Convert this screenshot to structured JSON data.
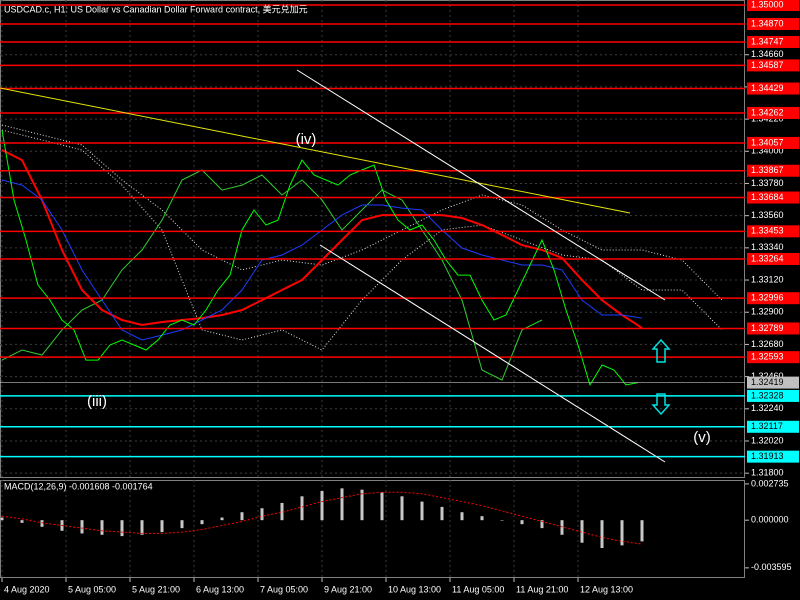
{
  "chart_data": [
    {
      "type": "line",
      "title": "USDCAD.c, H1:  US Dollar vs Canadian Dollar Forward contract, 美元兑加元",
      "annotations": [
        "(iii)",
        "(iv)",
        "(v)"
      ],
      "background": "#000000",
      "grid": true,
      "xlim": [
        -0.5,
        185.75
      ],
      "ylim": [
        1.31767,
        1.35034
      ],
      "xticks": [
        {
          "value": 0,
          "label": "4 Aug 2020"
        },
        {
          "value": 16,
          "label": "5 Aug 05:00"
        },
        {
          "value": 32,
          "label": "5 Aug 21:00"
        },
        {
          "value": 48,
          "label": "6 Aug 13:00"
        },
        {
          "value": 64,
          "label": "7 Aug 05:00"
        },
        {
          "value": 80,
          "label": "9 Aug 21:00"
        },
        {
          "value": 96,
          "label": "10 Aug 13:00"
        },
        {
          "value": 112,
          "label": "11 Aug 05:00"
        },
        {
          "value": 128,
          "label": "11 Aug 21:00"
        },
        {
          "value": 144,
          "label": "12 Aug 13:00"
        }
      ],
      "yticks": [
        {
          "value": 1.3466,
          "label": "1.34660"
        },
        {
          "value": 1.3444,
          "label": "1.34440"
        },
        {
          "value": 1.3422,
          "label": "1.34220"
        },
        {
          "value": 1.34,
          "label": "1.34000"
        },
        {
          "value": 1.3378,
          "label": "1.33780"
        },
        {
          "value": 1.3356,
          "label": "1.33560"
        },
        {
          "value": 1.3334,
          "label": "1.33340"
        },
        {
          "value": 1.3312,
          "label": "1.33120"
        },
        {
          "value": 1.329,
          "label": "1.32900"
        },
        {
          "value": 1.3268,
          "label": "1.32680"
        },
        {
          "value": 1.3246,
          "label": "1.32460"
        },
        {
          "value": 1.3224,
          "label": "1.32240"
        },
        {
          "value": 1.3202,
          "label": "1.32020"
        },
        {
          "value": 1.318,
          "label": "1.31800"
        }
      ],
      "hlines": [
        {
          "color": "#ff0000",
          "text_color": "#ffffff",
          "levels": [
            {
              "value": 1.35,
              "label": "1.35000"
            },
            {
              "value": 1.3487,
              "label": "1.34870"
            },
            {
              "value": 1.34747,
              "label": "1.34747"
            },
            {
              "value": 1.34587,
              "label": "1.34587"
            },
            {
              "value": 1.34429,
              "label": "1.34429"
            },
            {
              "value": 1.34262,
              "label": "1.34262"
            },
            {
              "value": 1.34057,
              "label": "1.34057"
            },
            {
              "value": 1.33867,
              "label": "1.33867"
            },
            {
              "value": 1.33684,
              "label": "1.33684"
            },
            {
              "value": 1.33453,
              "label": "1.33453"
            },
            {
              "value": 1.33264,
              "label": "1.33264"
            },
            {
              "value": 1.32996,
              "label": "1.32996"
            },
            {
              "value": 1.32789,
              "label": "1.32789"
            },
            {
              "value": 1.32593,
              "label": "1.32593"
            }
          ]
        },
        {
          "color": "#00ffff",
          "text_color": "#000000",
          "levels": [
            {
              "value": 1.32328,
              "label": "1.32328"
            },
            {
              "value": 1.32117,
              "label": "1.32117"
            },
            {
              "value": 1.31913,
              "label": "1.31913"
            }
          ]
        }
      ],
      "current_price": {
        "value": 1.32419,
        "label": "1.32419",
        "color": "#c0c0c0"
      },
      "series": [
        {
          "color": "#e0e0e0",
          "style": "dotted",
          "x": [
            0,
            10,
            20,
            30,
            40,
            50,
            60,
            70,
            80,
            90,
            100,
            110,
            120,
            130,
            140,
            150,
            160,
            170,
            180
          ],
          "values": [
            1.3418,
            1.34111,
            1.34043,
            1.33804,
            1.33599,
            1.33325,
            1.33189,
            1.33257,
            1.33223,
            1.33325,
            1.33462,
            1.33599,
            1.33701,
            1.33633,
            1.33462,
            1.33325,
            1.33325,
            1.33257,
            1.32983
          ]
        },
        {
          "color": "#e0e0e0",
          "style": "dotted",
          "x": [
            0,
            10,
            20,
            30,
            40,
            50,
            60,
            70,
            80,
            90,
            100,
            110,
            120,
            130,
            140,
            150,
            160,
            170,
            180
          ],
          "values": [
            1.34145,
            1.34077,
            1.34009,
            1.33769,
            1.33462,
            1.32779,
            1.3271,
            1.32779,
            1.32642,
            1.32983,
            1.33257,
            1.33462,
            1.33496,
            1.33394,
            1.33291,
            1.33257,
            1.33052,
            1.33052,
            1.32779
          ]
        },
        {
          "color": "#32cd32",
          "style": "solid",
          "x": [
            0,
            5,
            10,
            15,
            20,
            25,
            30,
            35,
            40,
            45,
            50,
            55,
            60,
            65,
            70,
            75,
            80,
            85,
            90,
            95,
            100,
            105,
            110,
            115,
            120,
            125,
            130,
            135
          ],
          "values": [
            1.32573,
            1.32642,
            1.32608,
            1.32779,
            1.32915,
            1.32983,
            1.33189,
            1.33325,
            1.3353,
            1.33804,
            1.33872,
            1.33735,
            1.33769,
            1.33838,
            1.33701,
            1.33804,
            1.33667,
            1.33462,
            1.33599,
            1.33735,
            1.33667,
            1.33462,
            1.33257,
            1.32983,
            1.32505,
            1.32437,
            1.32779,
            1.32847
          ]
        },
        {
          "color": "#ff0000",
          "style": "thick",
          "x": [
            0,
            5,
            10,
            15,
            20,
            25,
            30,
            35,
            40,
            45,
            50,
            55,
            60,
            65,
            70,
            75,
            80,
            85,
            90,
            95,
            100,
            105,
            110,
            115,
            120,
            125,
            130,
            135,
            140,
            145,
            150,
            155,
            160
          ],
          "values": [
            1.34009,
            1.3394,
            1.33667,
            1.33325,
            1.33052,
            1.32915,
            1.32847,
            1.32813,
            1.32833,
            1.32847,
            1.3286,
            1.32881,
            1.32915,
            1.32983,
            1.33052,
            1.3312,
            1.33257,
            1.33394,
            1.3353,
            1.33564,
            1.33564,
            1.33564,
            1.33564,
            1.33544,
            1.33496,
            1.33428,
            1.33359,
            1.33325,
            1.33271,
            1.3312,
            1.32983,
            1.32881,
            1.32792
          ]
        },
        {
          "color": "#1e3cff",
          "style": "solid",
          "x": [
            0,
            5,
            10,
            15,
            20,
            25,
            30,
            35,
            40,
            45,
            50,
            55,
            60,
            65,
            70,
            75,
            80,
            85,
            90,
            95,
            100,
            105,
            110,
            115,
            120,
            125,
            130,
            135,
            140,
            145,
            150,
            155,
            160
          ],
          "values": [
            1.33804,
            1.33769,
            1.33667,
            1.33462,
            1.33189,
            1.32983,
            1.32779,
            1.3271,
            1.32744,
            1.32779,
            1.32847,
            1.32915,
            1.33052,
            1.33257,
            1.33291,
            1.33359,
            1.33462,
            1.33564,
            1.33633,
            1.33633,
            1.33612,
            1.33599,
            1.33462,
            1.33339,
            1.33291,
            1.33257,
            1.33223,
            1.33223,
            1.33189,
            1.32983,
            1.32881,
            1.32881,
            1.3286
          ]
        },
        {
          "color": "#00ff00",
          "style": "solid",
          "x": [
            0,
            3,
            6,
            9,
            12,
            15,
            18,
            21,
            24,
            27,
            30,
            33,
            36,
            39,
            42,
            45,
            48,
            51,
            54,
            57,
            60,
            63,
            66,
            69,
            72,
            75,
            78,
            81,
            84,
            87,
            90,
            93,
            96,
            99,
            102,
            105,
            108,
            111,
            114,
            117,
            120,
            123,
            126,
            129,
            132,
            135,
            138,
            141,
            144,
            147,
            150,
            153,
            156,
            159
          ],
          "values": [
            1.34145,
            1.33667,
            1.33394,
            1.33086,
            1.32983,
            1.32847,
            1.32779,
            1.32573,
            1.32573,
            1.32676,
            1.3271,
            1.32676,
            1.32642,
            1.3271,
            1.32813,
            1.32847,
            1.32813,
            1.32915,
            1.33052,
            1.33154,
            1.33462,
            1.33599,
            1.33496,
            1.3353,
            1.33769,
            1.3394,
            1.33838,
            1.33804,
            1.33769,
            1.33838,
            1.33872,
            1.33906,
            1.33667,
            1.3353,
            1.33462,
            1.33496,
            1.33394,
            1.33257,
            1.33154,
            1.33154,
            1.32983,
            1.32847,
            1.32881,
            1.33052,
            1.33223,
            1.33394,
            1.33189,
            1.32915,
            1.32676,
            1.32403,
            1.32539,
            1.32505,
            1.32403,
            1.32419
          ]
        }
      ]
    },
    {
      "type": "bar",
      "title": "MACD(12,26,9) -0.001608 -0.001764",
      "xlim": [
        -0.5,
        185.75
      ],
      "ylim": [
        -0.00436,
        0.00303
      ],
      "yticks": [
        0.002735,
        {
          "value": 0,
          "label": "0.000000"
        },
        -0.003595
      ],
      "x": [
        0,
        5,
        10,
        15,
        20,
        25,
        30,
        35,
        40,
        45,
        50,
        55,
        60,
        65,
        70,
        75,
        80,
        85,
        90,
        95,
        100,
        105,
        110,
        115,
        120,
        125,
        130,
        135,
        140,
        145,
        150,
        155,
        160
      ],
      "series": [
        {
          "type": "bar",
          "color": "#c8c8c8",
          "values": [
            0.0002,
            -0.0002,
            -0.0005,
            -0.0008,
            -0.001,
            -0.0011,
            -0.0012,
            -0.0011,
            -0.0009,
            -0.0006,
            -0.0003,
            0.0002,
            0.0006,
            0.0009,
            0.0013,
            0.0018,
            0.0022,
            0.0024,
            0.0023,
            0.0021,
            0.0018,
            0.0014,
            0.001,
            0.0006,
            0.0003,
            0,
            -0.0003,
            -0.0006,
            -0.0011,
            -0.0017,
            -0.0021,
            -0.0019,
            -0.0016
          ]
        },
        {
          "type": "line",
          "color": "#ff0000",
          "style": "dotted",
          "values": [
            0.0003,
            0.0001,
            -0.0002,
            -0.0004,
            -0.0006,
            -0.0008,
            -0.0009,
            -0.001,
            -0.001,
            -0.0009,
            -0.0007,
            -0.0004,
            -0.0001,
            0.0003,
            0.0006,
            0.001,
            0.0014,
            0.0017,
            0.002,
            0.0021,
            0.0021,
            0.002,
            0.0017,
            0.0014,
            0.0011,
            0.0007,
            0.0003,
            -0.0001,
            -0.0005,
            -0.0009,
            -0.0013,
            -0.0016,
            -0.0018
          ]
        }
      ]
    }
  ]
}
